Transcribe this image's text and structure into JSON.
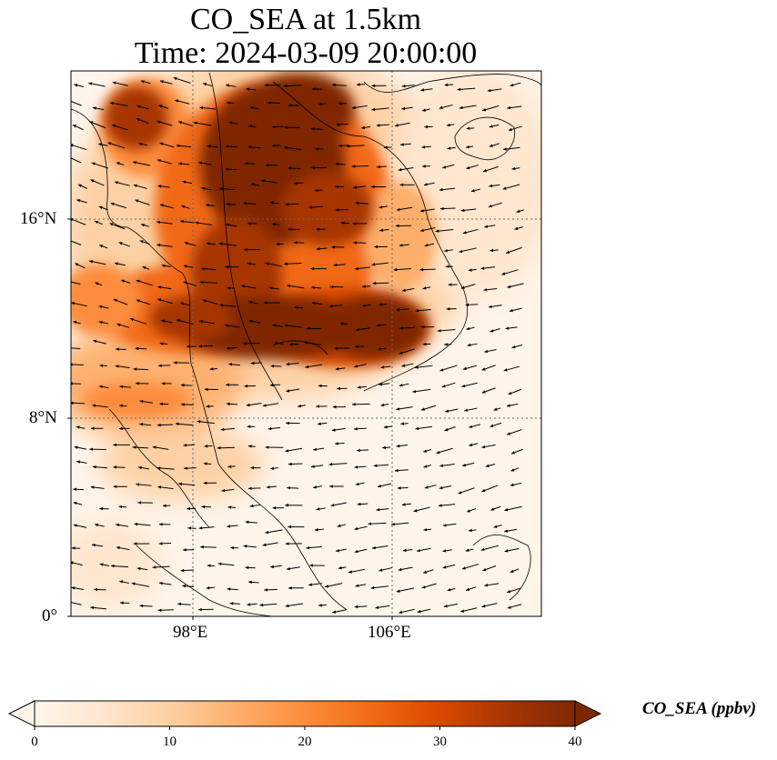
{
  "title": {
    "line1": "CO_SEA at 1.5km",
    "line2": "Time: 2024-03-09 20:00:00"
  },
  "map": {
    "lat_ticks": [
      "16°N",
      "8°N",
      "0°"
    ],
    "lon_ticks": [
      "98°E",
      "106°E"
    ],
    "gridlines": true,
    "extent": {
      "lon_min": 93,
      "lon_max": 112,
      "lat_min": 0,
      "lat_max": 22
    }
  },
  "colorbar": {
    "label": "CO_SEA (ppbv)",
    "ticks": [
      "0",
      "10",
      "20",
      "30",
      "40"
    ],
    "range": [
      0,
      40
    ],
    "extend": "both",
    "colormap": [
      "#fff5eb",
      "#fee6ce",
      "#fdd0a2",
      "#fdae6b",
      "#fd8d3c",
      "#f16913",
      "#d94801",
      "#a63603",
      "#7f2704"
    ]
  },
  "chart_data": {
    "type": "heatmap",
    "variable": "CO_SEA",
    "units": "ppbv",
    "overlay": "wind vectors"
  }
}
